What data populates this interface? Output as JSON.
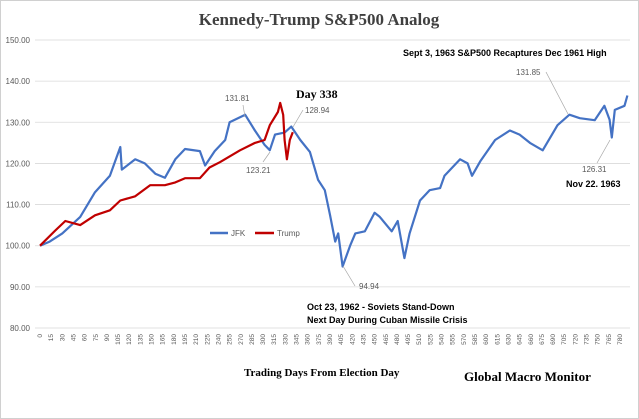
{
  "chart_data": {
    "type": "line",
    "title": "Kennedy-Trump  S&P500 Analog",
    "xlabel": "Trading  Days From  Election Day",
    "ylabel": "",
    "xlim": [
      0,
      790
    ],
    "ylim": [
      80,
      150
    ],
    "yticks": [
      "80.00",
      "90.00",
      "100.00",
      "110.00",
      "120.00",
      "130.00",
      "140.00",
      "150.00"
    ],
    "xtick_step": 15,
    "xtick_max": 780,
    "grid": true,
    "legend": "center",
    "series": [
      {
        "name": "JFK",
        "color": "#4472C4",
        "x": [
          0,
          13,
          30,
          54,
          74,
          94,
          108,
          110,
          128,
          141,
          155,
          168,
          182,
          195,
          215,
          222,
          235,
          249,
          255,
          276,
          289,
          302,
          309,
          316,
          329,
          338,
          350,
          363,
          374,
          383,
          390,
          397,
          401,
          407,
          417,
          424,
          437,
          450,
          457,
          473,
          481,
          490,
          497,
          511,
          524,
          538,
          544,
          565,
          575,
          581,
          592,
          612,
          632,
          645,
          659,
          676,
          696,
          712,
          726,
          746,
          759,
          766,
          769,
          773,
          786,
          790
        ],
        "y": [
          100,
          101,
          103,
          107,
          113,
          117,
          124,
          118.5,
          121,
          120,
          117.5,
          116.5,
          121,
          123.5,
          123,
          119.5,
          123,
          125.7,
          130,
          131.81,
          128,
          124.5,
          123.21,
          127,
          127.5,
          128.94,
          125.7,
          122.8,
          116,
          113.5,
          107.5,
          101,
          103,
          94.94,
          100,
          103,
          103.5,
          108,
          107,
          103.5,
          106,
          97,
          103,
          111,
          113.5,
          114,
          117,
          121,
          120,
          117,
          120.5,
          125.7,
          128,
          127,
          125,
          123.2,
          129.3,
          131.85,
          131,
          130.5,
          134,
          130.6,
          126.31,
          133,
          134,
          136.5
        ]
      },
      {
        "name": "Trump",
        "color": "#C00000",
        "x": [
          0,
          20,
          34,
          54,
          74,
          94,
          108,
          128,
          148,
          168,
          182,
          195,
          215,
          228,
          242,
          269,
          289,
          302,
          309,
          320,
          323,
          327,
          329,
          332,
          336,
          340
        ],
        "y": [
          100,
          103.6,
          106,
          105,
          107.4,
          108.6,
          111,
          112,
          114.7,
          114.7,
          115.4,
          116.4,
          116.4,
          119,
          120.3,
          123.2,
          125,
          125.7,
          129.3,
          132.5,
          134.7,
          131.8,
          125.7,
          121,
          125.7,
          127.6
        ]
      }
    ],
    "annotations": {
      "day338": "Day 338",
      "sept": "Sept 3, 1963  S&P500 Recaptures Dec 1961  High",
      "nov": "Nov 22. 1963",
      "oct1": "Oct 23, 1962 - Soviets Stand-Down",
      "oct2": "Next Day During Cuban Missile Crisis",
      "v1": "131.81",
      "v2": "128.94",
      "v3": "123.21",
      "v4": "94.94",
      "v5": "131.85",
      "v6": "126.31"
    },
    "footer": "Global Macro Monitor"
  }
}
